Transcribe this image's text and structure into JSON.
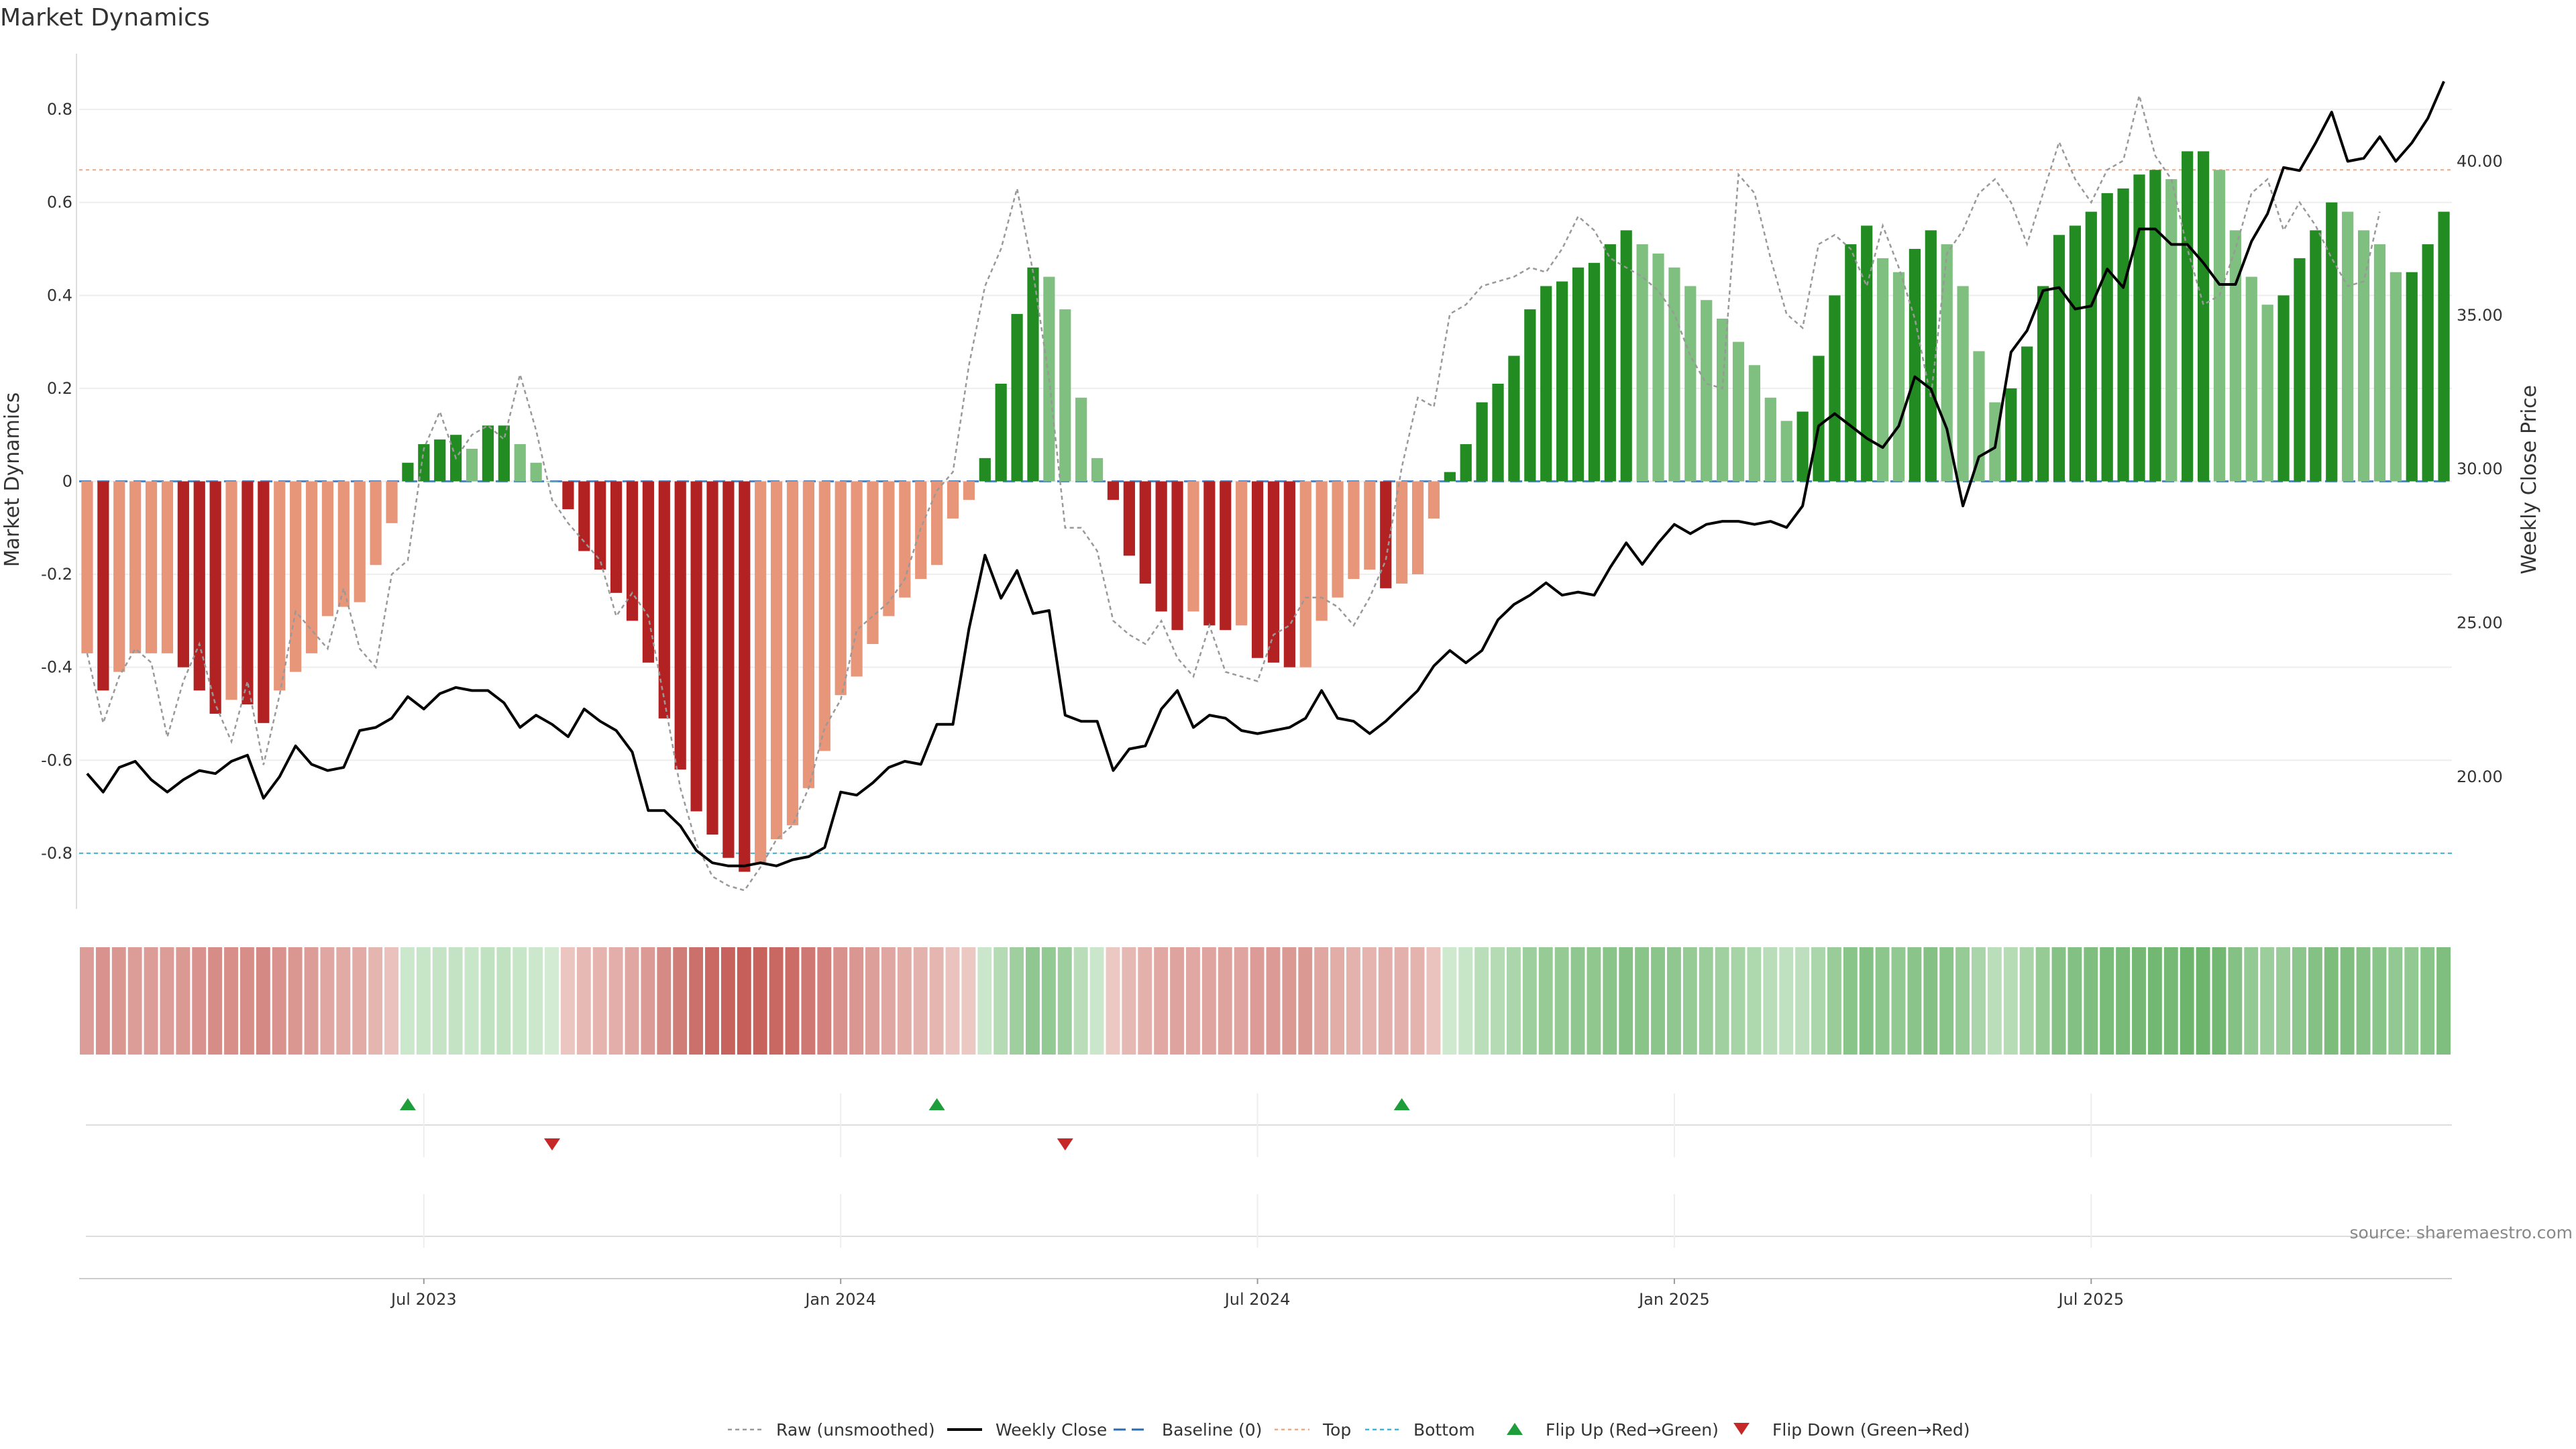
{
  "title": "Market Dynamics",
  "source_note": "source: sharemaestro.com",
  "chart_data": {
    "type": "bar+line",
    "title": "Market Dynamics",
    "y_left": {
      "label": "Market Dynamics",
      "range": [
        -0.92,
        0.92
      ],
      "ticks": [
        "-0.8",
        "-0.6",
        "-0.4",
        "-0.2",
        "0",
        "0.2",
        "0.4",
        "0.6",
        "0.8"
      ]
    },
    "y_right": {
      "label": "Weekly Close Price",
      "range": [
        15.7,
        43.5
      ],
      "ticks": [
        "20.00",
        "25.00",
        "30.00",
        "35.00",
        "40.00"
      ]
    },
    "x_ticks": [
      "Jul 2023",
      "Jan 2024",
      "Jul 2024",
      "Jan 2025",
      "Jul 2025"
    ],
    "x_tick_index": [
      21,
      47,
      73,
      99,
      125
    ],
    "reference_lines": {
      "top": 0.67,
      "baseline": 0,
      "bottom": -0.8
    },
    "smoothed": [
      -0.37,
      -0.45,
      -0.41,
      -0.37,
      -0.37,
      -0.37,
      -0.4,
      -0.45,
      -0.5,
      -0.47,
      -0.48,
      -0.52,
      -0.45,
      -0.41,
      -0.37,
      -0.29,
      -0.27,
      -0.26,
      -0.18,
      -0.09,
      0.04,
      0.08,
      0.09,
      0.1,
      0.07,
      0.12,
      0.12,
      0.08,
      0.04,
      0,
      -0.06,
      -0.15,
      -0.19,
      -0.24,
      -0.3,
      -0.39,
      -0.51,
      -0.62,
      -0.71,
      -0.76,
      -0.81,
      -0.84,
      -0.82,
      -0.77,
      -0.74,
      -0.66,
      -0.58,
      -0.46,
      -0.42,
      -0.35,
      -0.29,
      -0.25,
      -0.21,
      -0.18,
      -0.08,
      -0.04,
      0.05,
      0.21,
      0.36,
      0.46,
      0.44,
      0.37,
      0.18,
      0.05,
      -0.04,
      -0.16,
      -0.22,
      -0.28,
      -0.32,
      -0.28,
      -0.31,
      -0.32,
      -0.31,
      -0.38,
      -0.39,
      -0.4,
      -0.4,
      -0.3,
      -0.25,
      -0.21,
      -0.19,
      -0.23,
      -0.22,
      -0.2,
      -0.08,
      0.02,
      0.08,
      0.17,
      0.21,
      0.27,
      0.37,
      0.42,
      0.43,
      0.46,
      0.47,
      0.51,
      0.54,
      0.51,
      0.49,
      0.46,
      0.42,
      0.39,
      0.35,
      0.3,
      0.25,
      0.18,
      0.13,
      0.15,
      0.27,
      0.4,
      0.51,
      0.55,
      0.48,
      0.45,
      0.5,
      0.54,
      0.51,
      0.42,
      0.28,
      0.17,
      0.2,
      0.29,
      0.42,
      0.53,
      0.55,
      0.58,
      0.62,
      0.63,
      0.66,
      0.67,
      0.65,
      0.71,
      0.71,
      0.67,
      0.54,
      0.44,
      0.38,
      0.4,
      0.48,
      0.54,
      0.6,
      0.58,
      0.54,
      0.51,
      0.45,
      0.45,
      0.51,
      0.58
    ],
    "raw": [
      -0.37,
      -0.52,
      -0.42,
      -0.36,
      -0.39,
      -0.55,
      -0.43,
      -0.35,
      -0.48,
      -0.56,
      -0.43,
      -0.61,
      -0.46,
      -0.28,
      -0.32,
      -0.36,
      -0.23,
      -0.36,
      -0.4,
      -0.2,
      -0.17,
      0.07,
      0.15,
      0.05,
      0.1,
      0.12,
      0.09,
      0.23,
      0.11,
      -0.04,
      -0.09,
      -0.13,
      -0.17,
      -0.29,
      -0.24,
      -0.29,
      -0.47,
      -0.66,
      -0.78,
      -0.85,
      -0.87,
      -0.88,
      -0.83,
      -0.77,
      -0.74,
      -0.66,
      -0.53,
      -0.47,
      -0.32,
      -0.29,
      -0.26,
      -0.21,
      -0.1,
      -0.02,
      0.02,
      0.25,
      0.42,
      0.5,
      0.63,
      0.45,
      0.22,
      -0.1,
      -0.1,
      -0.15,
      -0.3,
      -0.33,
      -0.35,
      -0.3,
      -0.38,
      -0.42,
      -0.31,
      -0.41,
      -0.42,
      -0.43,
      -0.33,
      -0.31,
      -0.25,
      -0.25,
      -0.27,
      -0.31,
      -0.25,
      -0.17,
      0.03,
      0.18,
      0.16,
      0.36,
      0.38,
      0.42,
      0.43,
      0.44,
      0.46,
      0.45,
      0.5,
      0.57,
      0.54,
      0.48,
      0.46,
      0.44,
      0.41,
      0.36,
      0.27,
      0.21,
      0.2,
      0.66,
      0.62,
      0.48,
      0.36,
      0.33,
      0.51,
      0.53,
      0.5,
      0.42,
      0.55,
      0.46,
      0.35,
      0.18,
      0.49,
      0.54,
      0.62,
      0.65,
      0.6,
      0.51,
      0.62,
      0.73,
      0.65,
      0.6,
      0.67,
      0.69,
      0.83,
      0.7,
      0.65,
      0.5,
      0.38,
      0.4,
      0.5,
      0.62,
      0.65,
      0.54,
      0.6,
      0.55,
      0.48,
      0.42,
      0.43,
      0.58
    ],
    "close": [
      20.1,
      19.5,
      20.3,
      20.5,
      19.9,
      19.5,
      19.9,
      20.2,
      20.1,
      20.5,
      20.7,
      19.3,
      20.0,
      21.0,
      20.4,
      20.2,
      20.3,
      21.5,
      21.6,
      21.9,
      22.6,
      22.2,
      22.7,
      22.9,
      22.8,
      22.8,
      22.4,
      21.6,
      22.0,
      21.7,
      21.3,
      22.2,
      21.8,
      21.5,
      20.8,
      18.9,
      18.9,
      18.4,
      17.6,
      17.2,
      17.1,
      17.1,
      17.2,
      17.1,
      17.3,
      17.4,
      17.7,
      19.5,
      19.4,
      19.8,
      20.3,
      20.5,
      20.4,
      21.7,
      21.7,
      24.8,
      27.2,
      25.8,
      26.7,
      25.3,
      25.4,
      22.0,
      21.8,
      21.8,
      20.2,
      20.9,
      21.0,
      22.2,
      22.8,
      21.6,
      22.0,
      21.9,
      21.5,
      21.4,
      21.5,
      21.6,
      21.9,
      22.8,
      21.9,
      21.8,
      21.4,
      21.8,
      22.3,
      22.8,
      23.6,
      24.1,
      23.7,
      24.1,
      25.1,
      25.6,
      25.9,
      26.3,
      25.9,
      26.0,
      25.9,
      26.8,
      27.6,
      26.9,
      27.6,
      28.2,
      27.9,
      28.2,
      28.3,
      28.3,
      28.2,
      28.3,
      28.1,
      28.8,
      31.4,
      31.8,
      31.4,
      31.0,
      30.7,
      31.4,
      33.0,
      32.6,
      31.3,
      28.8,
      30.4,
      30.7,
      33.8,
      34.5,
      35.8,
      35.9,
      35.2,
      35.3,
      36.5,
      35.9,
      37.8,
      37.8,
      37.3,
      37.3,
      36.7,
      36.0,
      36.0,
      37.4,
      38.3,
      39.8,
      39.7,
      40.6,
      41.6,
      40.0,
      40.1,
      40.8,
      40.0,
      40.6,
      41.4,
      42.6
    ],
    "series": [
      {
        "name": "Raw (unsmoothed)"
      },
      {
        "name": "Weekly Close"
      },
      {
        "name": "Baseline (0)"
      },
      {
        "name": "Top"
      },
      {
        "name": "Bottom"
      },
      {
        "name": "Flip Up (Red→Green)"
      },
      {
        "name": "Flip Down (Green→Red)"
      }
    ],
    "flips": {
      "up_index": [
        20,
        53,
        82
      ],
      "down_index": [
        29,
        61
      ]
    }
  },
  "colors": {
    "green_dark": "#228b22",
    "green_light": "#7fbf7f",
    "red_dark": "#b22222",
    "red_light": "#e8967a",
    "close_line": "#000000",
    "raw_line": "#999999",
    "baseline": "#2b6cb0",
    "top": "#e8a88a",
    "bottom": "#3bb4d8",
    "flip_up": "#1e9e3a",
    "flip_down": "#c62828"
  }
}
